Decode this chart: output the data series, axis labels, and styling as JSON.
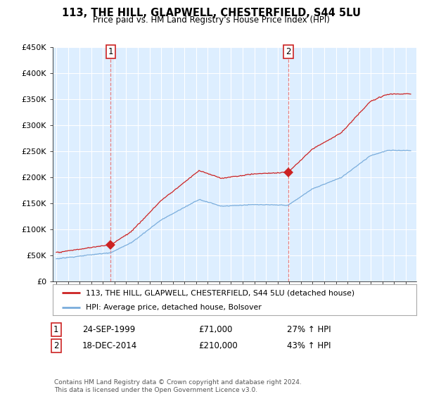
{
  "title": "113, THE HILL, GLAPWELL, CHESTERFIELD, S44 5LU",
  "subtitle": "Price paid vs. HM Land Registry's House Price Index (HPI)",
  "legend_line1": "113, THE HILL, GLAPWELL, CHESTERFIELD, S44 5LU (detached house)",
  "legend_line2": "HPI: Average price, detached house, Bolsover",
  "footer": "Contains HM Land Registry data © Crown copyright and database right 2024.\nThis data is licensed under the Open Government Licence v3.0.",
  "sale1_label": "1",
  "sale1_date": "24-SEP-1999",
  "sale1_price": "£71,000",
  "sale1_hpi": "27% ↑ HPI",
  "sale2_label": "2",
  "sale2_date": "18-DEC-2014",
  "sale2_price": "£210,000",
  "sale2_hpi": "43% ↑ HPI",
  "sale1_price_val": 71000,
  "sale2_price_val": 210000,
  "sale1_t": 1999.71,
  "sale2_t": 2014.96,
  "ylim": [
    0,
    450000
  ],
  "yticks": [
    0,
    50000,
    100000,
    150000,
    200000,
    250000,
    300000,
    350000,
    400000,
    450000
  ],
  "hpi_color": "#7aaddc",
  "price_color": "#cc2222",
  "vline_color": "#e88080",
  "plot_bg_color": "#ddeeff",
  "background_color": "#ffffff",
  "grid_color": "#ffffff"
}
